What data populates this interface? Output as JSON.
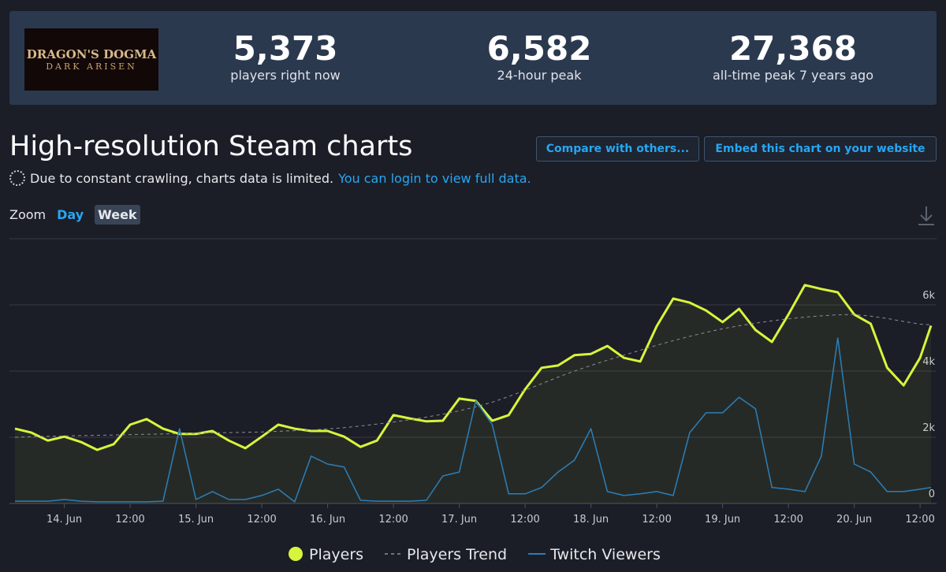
{
  "header": {
    "logo": {
      "line1": "DRAGON'S DOGMA",
      "line2": "DARK ARISEN"
    },
    "stats": [
      {
        "value": "5,373",
        "label": "players right now"
      },
      {
        "value": "6,582",
        "label": "24-hour peak"
      },
      {
        "value": "27,368",
        "label": "all-time peak 7 years ago"
      }
    ]
  },
  "title": "High-resolution Steam charts",
  "buttons": [
    "Compare with others...",
    "Embed this chart on your website"
  ],
  "notice": {
    "text": "Due to constant crawling, charts data is limited.",
    "link": "You can login to view full data."
  },
  "zoom": {
    "label": "Zoom",
    "options": [
      "Day",
      "Week"
    ]
  },
  "chart_data": {
    "type": "line",
    "x": [
      "13 Jun 15:00",
      "13 Jun 18:00",
      "13 Jun 21:00",
      "14 Jun 00:00",
      "14 Jun 03:00",
      "14 Jun 06:00",
      "14 Jun 09:00",
      "14 Jun 12:00",
      "14 Jun 15:00",
      "14 Jun 18:00",
      "14 Jun 21:00",
      "15 Jun 00:00",
      "15 Jun 03:00",
      "15 Jun 06:00",
      "15 Jun 09:00",
      "15 Jun 12:00",
      "15 Jun 15:00",
      "15 Jun 18:00",
      "15 Jun 21:00",
      "16 Jun 00:00",
      "16 Jun 03:00",
      "16 Jun 06:00",
      "16 Jun 09:00",
      "16 Jun 12:00",
      "16 Jun 15:00",
      "16 Jun 18:00",
      "16 Jun 21:00",
      "17 Jun 00:00",
      "17 Jun 03:00",
      "17 Jun 06:00",
      "17 Jun 09:00",
      "17 Jun 12:00",
      "17 Jun 15:00",
      "17 Jun 18:00",
      "17 Jun 21:00",
      "18 Jun 00:00",
      "18 Jun 03:00",
      "18 Jun 06:00",
      "18 Jun 09:00",
      "18 Jun 12:00",
      "18 Jun 15:00",
      "18 Jun 18:00",
      "18 Jun 21:00",
      "19 Jun 00:00",
      "19 Jun 03:00",
      "19 Jun 06:00",
      "19 Jun 09:00",
      "19 Jun 12:00",
      "19 Jun 15:00",
      "19 Jun 18:00",
      "19 Jun 21:00",
      "20 Jun 00:00",
      "20 Jun 03:00",
      "20 Jun 06:00",
      "20 Jun 09:00",
      "20 Jun 12:00",
      "20 Jun 14:00"
    ],
    "series": [
      {
        "name": "Players",
        "color": "#d7f53b",
        "values": [
          2260,
          2140,
          1900,
          2020,
          1860,
          1620,
          1790,
          2380,
          2550,
          2260,
          2100,
          2100,
          2190,
          1900,
          1670,
          2020,
          2380,
          2260,
          2190,
          2190,
          2020,
          1710,
          1900,
          2670,
          2570,
          2480,
          2500,
          3170,
          3100,
          2500,
          2670,
          3450,
          4100,
          4170,
          4480,
          4520,
          4760,
          4400,
          4290,
          5360,
          6190,
          6070,
          5830,
          5480,
          5880,
          5240,
          4880,
          5710,
          6600,
          6480,
          6380,
          5710,
          5430,
          4100,
          3570,
          4400,
          5373
        ]
      },
      {
        "name": "Players Trend",
        "color": "#8a8f98",
        "values": [
          2000,
          2020,
          2030,
          2040,
          2050,
          2060,
          2070,
          2080,
          2090,
          2100,
          2110,
          2120,
          2130,
          2140,
          2150,
          2160,
          2180,
          2200,
          2220,
          2250,
          2290,
          2340,
          2400,
          2460,
          2530,
          2610,
          2700,
          2800,
          2920,
          3060,
          3230,
          3420,
          3620,
          3820,
          4000,
          4170,
          4330,
          4480,
          4630,
          4780,
          4920,
          5050,
          5170,
          5280,
          5370,
          5450,
          5520,
          5580,
          5630,
          5670,
          5700,
          5710,
          5660,
          5590,
          5500,
          5420,
          5400
        ]
      },
      {
        "name": "Twitch Viewers",
        "color": "#2b7fb8",
        "values": [
          70,
          70,
          70,
          120,
          70,
          50,
          50,
          50,
          50,
          70,
          2260,
          120,
          360,
          120,
          120,
          240,
          430,
          50,
          1430,
          1190,
          1100,
          95,
          70,
          70,
          70,
          95,
          830,
          950,
          3100,
          2380,
          290,
          290,
          480,
          950,
          1310,
          2260,
          360,
          240,
          290,
          360,
          240,
          2140,
          2740,
          2740,
          3210,
          2860,
          480,
          430,
          360,
          1430,
          5000,
          1190,
          950,
          360,
          360,
          430,
          480
        ]
      }
    ],
    "xlim": [
      "13 Jun 14:00",
      "20 Jun 15:00"
    ],
    "xticks": [
      {
        "value": "14 Jun 00:00",
        "label": "14. Jun"
      },
      {
        "value": "14 Jun 12:00",
        "label": "12:00"
      },
      {
        "value": "15 Jun 00:00",
        "label": "15. Jun"
      },
      {
        "value": "15 Jun 12:00",
        "label": "12:00"
      },
      {
        "value": "16 Jun 00:00",
        "label": "16. Jun"
      },
      {
        "value": "16 Jun 12:00",
        "label": "12:00"
      },
      {
        "value": "17 Jun 00:00",
        "label": "17. Jun"
      },
      {
        "value": "17 Jun 12:00",
        "label": "12:00"
      },
      {
        "value": "18 Jun 00:00",
        "label": "18. Jun"
      },
      {
        "value": "18 Jun 12:00",
        "label": "12:00"
      },
      {
        "value": "19 Jun 00:00",
        "label": "19. Jun"
      },
      {
        "value": "19 Jun 12:00",
        "label": "12:00"
      },
      {
        "value": "20 Jun 00:00",
        "label": "20. Jun"
      },
      {
        "value": "20 Jun 12:00",
        "label": "12:00"
      }
    ],
    "ylim": [
      0,
      8000
    ],
    "yticks": [
      0,
      {
        "value": 2000,
        "label": "2k"
      },
      {
        "value": 4000,
        "label": "4k"
      },
      {
        "value": 6000,
        "label": "6k"
      }
    ],
    "grid": true
  }
}
